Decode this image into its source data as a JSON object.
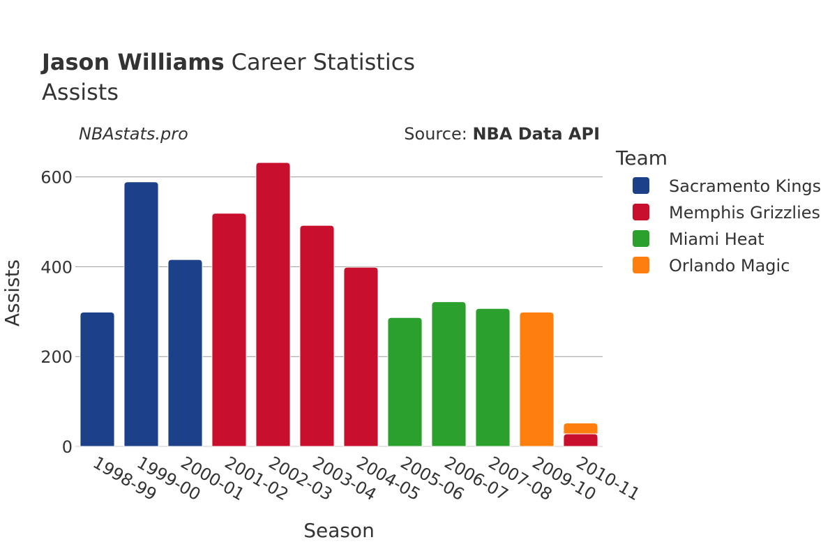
{
  "header": {
    "title_bold": "Jason Williams",
    "title_rest": "Career Statistics",
    "subtitle": "Assists",
    "site": "NBAstats.pro",
    "source_prefix": "Source: ",
    "source_bold": "NBA Data API"
  },
  "legend": {
    "title": "Team"
  },
  "chart_data": {
    "type": "bar",
    "stacked": true,
    "xlabel": "Season",
    "ylabel": "Assists",
    "ylim": [
      0,
      660
    ],
    "yticks": [
      0,
      200,
      400,
      600
    ],
    "grid": true,
    "legend_position": "right",
    "categories": [
      "1998-99",
      "1999-00",
      "2000-01",
      "2001-02",
      "2002-03",
      "2003-04",
      "2004-05",
      "2005-06",
      "2006-07",
      "2007-08",
      "2009-10",
      "2010-11"
    ],
    "series": [
      {
        "name": "Sacramento Kings",
        "color": "#1c4188",
        "values": [
          299,
          589,
          416,
          0,
          0,
          0,
          0,
          0,
          0,
          0,
          0,
          0
        ]
      },
      {
        "name": "Memphis Grizzlies",
        "color": "#c8102e",
        "values": [
          0,
          0,
          0,
          519,
          632,
          492,
          399,
          0,
          0,
          0,
          0,
          28
        ]
      },
      {
        "name": "Miami Heat",
        "color": "#2ca02c",
        "values": [
          0,
          0,
          0,
          0,
          0,
          0,
          0,
          287,
          322,
          307,
          0,
          0
        ]
      },
      {
        "name": "Orlando Magic",
        "color": "#ff7f0e",
        "values": [
          0,
          0,
          0,
          0,
          0,
          0,
          0,
          0,
          0,
          0,
          299,
          24
        ]
      }
    ]
  }
}
